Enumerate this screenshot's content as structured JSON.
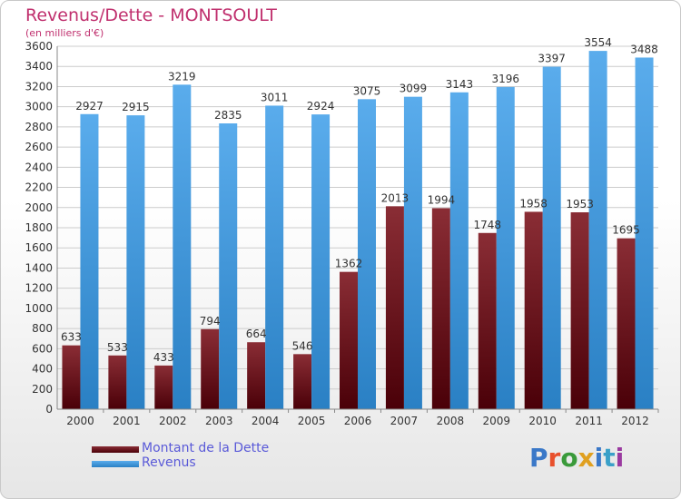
{
  "title": "Revenus/Dette - MONTSOULT",
  "subtitle": "(en milliers d'€)",
  "legend": {
    "debt_label": "Montant de la Dette",
    "revenue_label": "Revenus"
  },
  "logo": {
    "text": "Proxiti",
    "colors": [
      "#3a78c8",
      "#e8502c",
      "#3a9a3a",
      "#e0a020",
      "#3a78c8",
      "#3aa0c8",
      "#9a3aa0"
    ]
  },
  "colors": {
    "debt_top": "#8a2d35",
    "debt_bottom": "#4a0008",
    "revenue_top": "#5aacec",
    "revenue_bottom": "#2a80c4",
    "grid": "#cccccc",
    "text": "#333333"
  },
  "chart_data": {
    "type": "bar",
    "categories": [
      "2000",
      "2001",
      "2002",
      "2003",
      "2004",
      "2005",
      "2006",
      "2007",
      "2008",
      "2009",
      "2010",
      "2011",
      "2012"
    ],
    "series": [
      {
        "name": "Montant de la Dette",
        "values": [
          633,
          533,
          433,
          794,
          664,
          546,
          1362,
          2013,
          1994,
          1748,
          1958,
          1953,
          1695
        ]
      },
      {
        "name": "Revenus",
        "values": [
          2927,
          2915,
          3219,
          2835,
          3011,
          2924,
          3075,
          3099,
          3143,
          3196,
          3397,
          3554,
          3488
        ]
      }
    ],
    "data_labels": {
      "Montant de la Dette": [
        "633",
        "533",
        "433",
        "794",
        "664",
        "546",
        "1362",
        "2013",
        "1994",
        "1748",
        "1958",
        "1953",
        "1695"
      ],
      "Revenus": [
        "2927",
        "2915",
        "3219",
        "2835",
        "3011",
        "2924",
        "3075",
        "3099",
        "3143",
        "3196",
        "3397",
        "3554",
        "3488"
      ]
    },
    "yticks": [
      0,
      200,
      400,
      600,
      800,
      1000,
      1200,
      1400,
      1600,
      1800,
      2000,
      2200,
      2400,
      2600,
      2800,
      3000,
      3200,
      3400,
      3600
    ],
    "ylim": [
      0,
      3600
    ],
    "grid": true,
    "legend_position": "bottom-left"
  }
}
